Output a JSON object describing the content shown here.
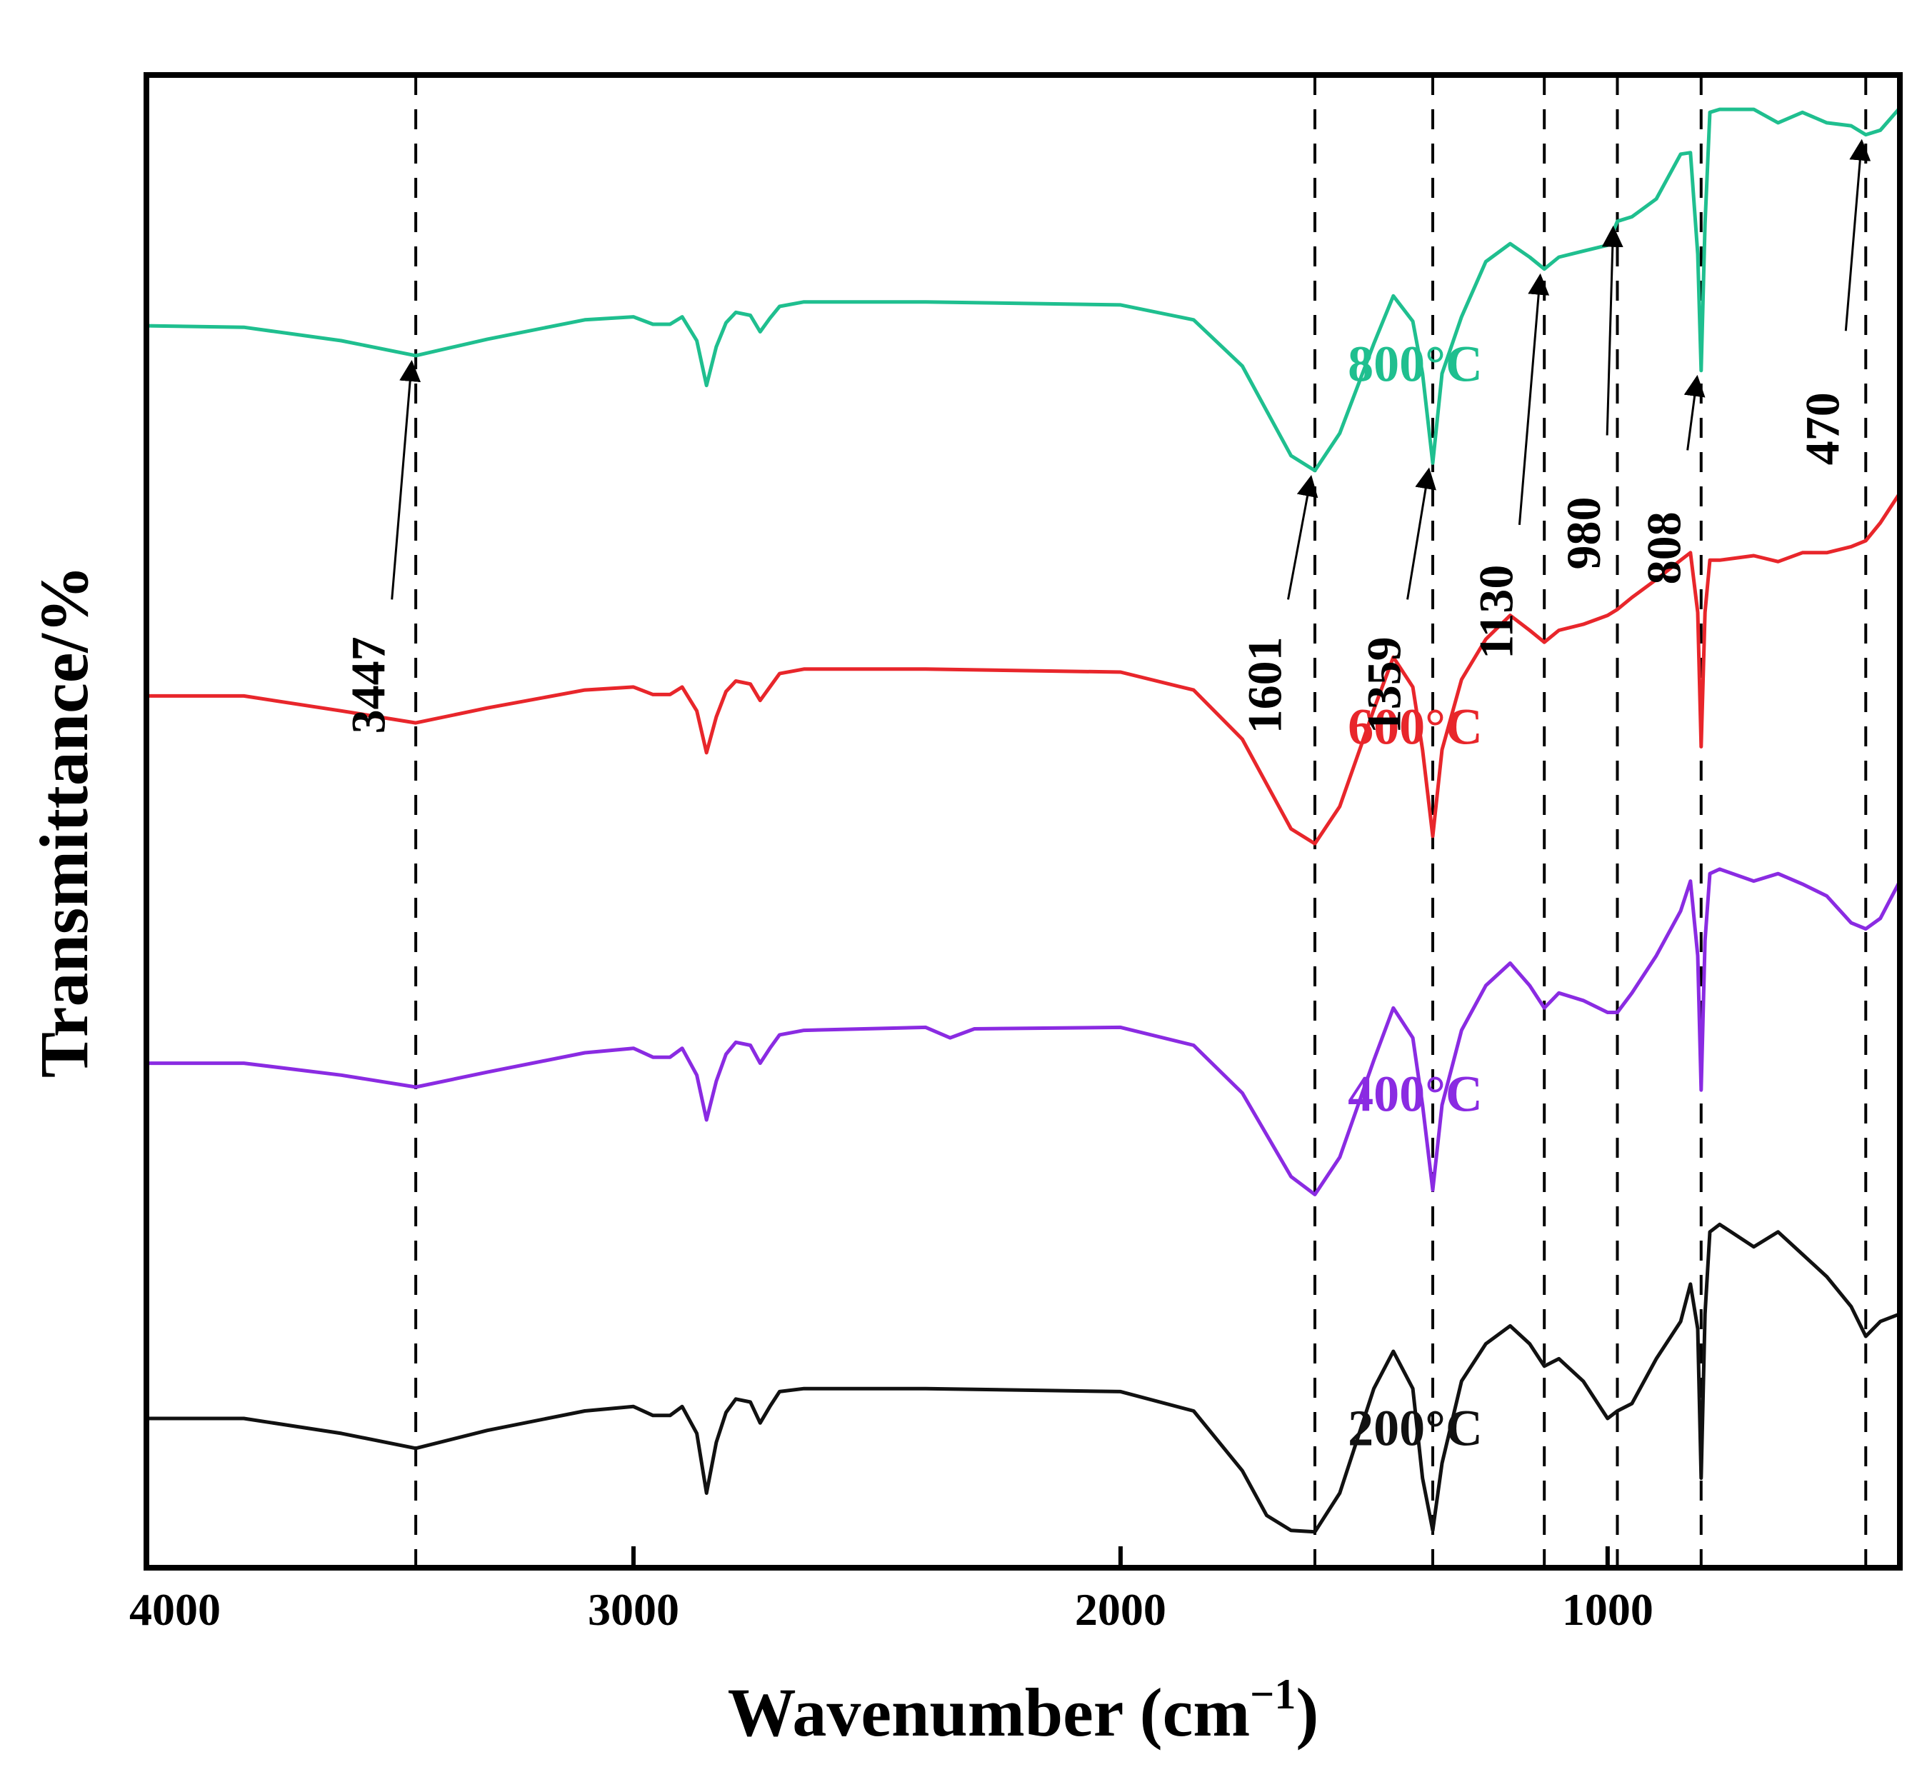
{
  "chart_data": {
    "type": "line",
    "title": "",
    "xlabel": "Wavenumber (cm",
    "xlabel_sup": "−1",
    "xlabel_close": ")",
    "ylabel": "Transmittance/%",
    "xlim": [
      4000,
      400
    ],
    "ylim": [
      0,
      1
    ],
    "grid": false,
    "x_ticks": [
      4000,
      3000,
      2000,
      1000
    ],
    "x_tick_labels": [
      "4000",
      "3000",
      "2000",
      "1000"
    ],
    "y_ticks_shown": false,
    "reference_lines": [
      3447,
      1601,
      1359,
      1130,
      980,
      808,
      470
    ],
    "peak_annotations": [
      {
        "label": "3447",
        "x": 3447,
        "series": "800°C"
      },
      {
        "label": "1601",
        "x": 1601,
        "series": "800°C"
      },
      {
        "label": "1359",
        "x": 1359,
        "series": "800°C"
      },
      {
        "label": "1130",
        "x": 1130,
        "series": "800°C"
      },
      {
        "label": "980",
        "x": 980,
        "series": "800°C"
      },
      {
        "label": "808",
        "x": 808,
        "series": "800°C"
      },
      {
        "label": "470",
        "x": 470,
        "series": "800°C"
      }
    ],
    "series": [
      {
        "name": "800°C",
        "color": "#1fbf8f",
        "x": [
          4000,
          3800,
          3600,
          3447,
          3300,
          3100,
          3000,
          2960,
          2925,
          2900,
          2870,
          2850,
          2830,
          2810,
          2790,
          2760,
          2740,
          2720,
          2700,
          2650,
          2400,
          2000,
          1850,
          1750,
          1700,
          1650,
          1601,
          1550,
          1480,
          1440,
          1400,
          1380,
          1359,
          1340,
          1300,
          1250,
          1200,
          1160,
          1130,
          1100,
          1050,
          1000,
          980,
          950,
          900,
          850,
          830,
          815,
          808,
          800,
          790,
          770,
          700,
          650,
          600,
          550,
          500,
          470,
          440,
          400
        ],
        "values": [
          0.832,
          0.831,
          0.822,
          0.812,
          0.823,
          0.836,
          0.838,
          0.833,
          0.833,
          0.838,
          0.822,
          0.792,
          0.818,
          0.834,
          0.841,
          0.839,
          0.828,
          0.837,
          0.845,
          0.848,
          0.848,
          0.846,
          0.836,
          0.805,
          0.775,
          0.745,
          0.735,
          0.76,
          0.82,
          0.852,
          0.835,
          0.8,
          0.74,
          0.8,
          0.838,
          0.875,
          0.887,
          0.878,
          0.87,
          0.878,
          0.882,
          0.886,
          0.902,
          0.905,
          0.917,
          0.947,
          0.948,
          0.88,
          0.802,
          0.9,
          0.975,
          0.977,
          0.977,
          0.968,
          0.975,
          0.968,
          0.966,
          0.96,
          0.963,
          0.978
        ]
      },
      {
        "name": "600°C",
        "color": "#e8262b",
        "x": [
          4000,
          3800,
          3600,
          3447,
          3300,
          3100,
          3000,
          2960,
          2925,
          2900,
          2870,
          2850,
          2830,
          2810,
          2790,
          2760,
          2740,
          2720,
          2700,
          2650,
          2400,
          2000,
          1850,
          1750,
          1700,
          1650,
          1601,
          1550,
          1480,
          1440,
          1400,
          1380,
          1359,
          1340,
          1300,
          1250,
          1200,
          1160,
          1130,
          1100,
          1050,
          1000,
          980,
          950,
          900,
          850,
          830,
          815,
          808,
          800,
          790,
          770,
          700,
          650,
          600,
          550,
          500,
          470,
          440,
          400
        ],
        "values": [
          0.584,
          0.584,
          0.574,
          0.566,
          0.576,
          0.588,
          0.59,
          0.585,
          0.585,
          0.59,
          0.574,
          0.546,
          0.57,
          0.587,
          0.594,
          0.592,
          0.581,
          0.59,
          0.599,
          0.602,
          0.602,
          0.6,
          0.588,
          0.555,
          0.525,
          0.495,
          0.485,
          0.51,
          0.575,
          0.61,
          0.59,
          0.548,
          0.49,
          0.548,
          0.595,
          0.622,
          0.638,
          0.628,
          0.62,
          0.628,
          0.632,
          0.638,
          0.642,
          0.65,
          0.662,
          0.675,
          0.68,
          0.64,
          0.55,
          0.64,
          0.675,
          0.675,
          0.678,
          0.674,
          0.68,
          0.68,
          0.684,
          0.688,
          0.7,
          0.72
        ]
      },
      {
        "name": "400°C",
        "color": "#8a2be2",
        "x": [
          4000,
          3800,
          3600,
          3447,
          3300,
          3100,
          3000,
          2960,
          2925,
          2900,
          2870,
          2850,
          2830,
          2810,
          2790,
          2760,
          2740,
          2720,
          2700,
          2650,
          2400,
          2350,
          2300,
          2000,
          1850,
          1750,
          1700,
          1650,
          1601,
          1550,
          1480,
          1440,
          1400,
          1380,
          1359,
          1340,
          1300,
          1250,
          1200,
          1160,
          1130,
          1100,
          1050,
          1000,
          980,
          950,
          900,
          850,
          830,
          815,
          808,
          800,
          790,
          770,
          700,
          650,
          600,
          550,
          500,
          470,
          440,
          400
        ],
        "values": [
          0.338,
          0.338,
          0.33,
          0.322,
          0.332,
          0.345,
          0.348,
          0.342,
          0.342,
          0.348,
          0.33,
          0.3,
          0.326,
          0.344,
          0.352,
          0.35,
          0.338,
          0.348,
          0.357,
          0.36,
          0.362,
          0.355,
          0.361,
          0.362,
          0.35,
          0.318,
          0.29,
          0.262,
          0.25,
          0.275,
          0.34,
          0.375,
          0.355,
          0.31,
          0.253,
          0.31,
          0.36,
          0.39,
          0.405,
          0.39,
          0.375,
          0.385,
          0.38,
          0.372,
          0.372,
          0.385,
          0.41,
          0.44,
          0.46,
          0.41,
          0.32,
          0.42,
          0.465,
          0.468,
          0.46,
          0.465,
          0.458,
          0.45,
          0.432,
          0.428,
          0.435,
          0.46
        ]
      },
      {
        "name": "200°C",
        "color": "#111111",
        "x": [
          4000,
          3800,
          3600,
          3447,
          3300,
          3100,
          3000,
          2960,
          2925,
          2900,
          2870,
          2850,
          2830,
          2810,
          2790,
          2760,
          2740,
          2720,
          2700,
          2650,
          2400,
          2000,
          1850,
          1750,
          1700,
          1650,
          1601,
          1550,
          1480,
          1440,
          1400,
          1380,
          1359,
          1340,
          1300,
          1250,
          1200,
          1160,
          1130,
          1100,
          1050,
          1000,
          980,
          950,
          900,
          850,
          830,
          815,
          808,
          800,
          790,
          770,
          700,
          650,
          600,
          550,
          500,
          470,
          440,
          400
        ],
        "values": [
          0.1,
          0.1,
          0.09,
          0.08,
          0.092,
          0.105,
          0.108,
          0.102,
          0.102,
          0.108,
          0.09,
          0.05,
          0.084,
          0.104,
          0.113,
          0.111,
          0.097,
          0.108,
          0.118,
          0.12,
          0.12,
          0.118,
          0.105,
          0.065,
          0.035,
          0.025,
          0.024,
          0.05,
          0.12,
          0.145,
          0.12,
          0.06,
          0.025,
          0.07,
          0.125,
          0.15,
          0.162,
          0.15,
          0.135,
          0.14,
          0.125,
          0.1,
          0.105,
          0.11,
          0.14,
          0.165,
          0.19,
          0.16,
          0.06,
          0.17,
          0.225,
          0.23,
          0.215,
          0.225,
          0.21,
          0.195,
          0.175,
          0.155,
          0.165,
          0.17
        ]
      }
    ]
  }
}
